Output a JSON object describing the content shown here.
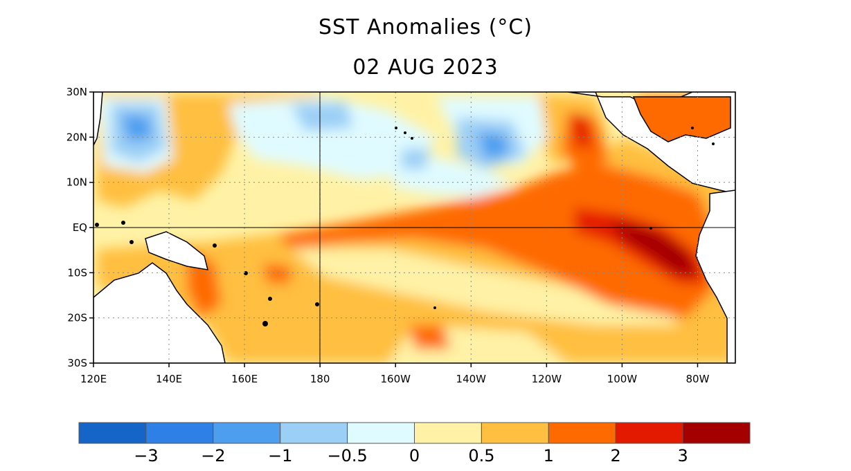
{
  "title": "SST Anomalies (°C)",
  "date": "02 AUG 2023",
  "map": {
    "lon_range": [
      120,
      290
    ],
    "lat_range": [
      -30,
      30
    ],
    "lon_ticks": [
      {
        "value": 120,
        "label": "120E"
      },
      {
        "value": 140,
        "label": "140E"
      },
      {
        "value": 160,
        "label": "160E"
      },
      {
        "value": 180,
        "label": "180"
      },
      {
        "value": 200,
        "label": "160W"
      },
      {
        "value": 220,
        "label": "140W"
      },
      {
        "value": 240,
        "label": "120W"
      },
      {
        "value": 260,
        "label": "100W"
      },
      {
        "value": 280,
        "label": "80W"
      }
    ],
    "lat_ticks": [
      {
        "value": 30,
        "label": "30N"
      },
      {
        "value": 20,
        "label": "20N"
      },
      {
        "value": 10,
        "label": "10N"
      },
      {
        "value": 0,
        "label": "EQ"
      },
      {
        "value": -10,
        "label": "10S"
      },
      {
        "value": -20,
        "label": "20S"
      },
      {
        "value": -30,
        "label": "30S"
      }
    ]
  },
  "colorbar": {
    "bins": [
      {
        "color": "#1565c8"
      },
      {
        "color": "#2e7fe6"
      },
      {
        "color": "#4e9ef0"
      },
      {
        "color": "#9ccff6"
      },
      {
        "color": "#e0fbff"
      },
      {
        "color": "#fff2a6"
      },
      {
        "color": "#ffbf40"
      },
      {
        "color": "#fe6a00"
      },
      {
        "color": "#e41a00"
      },
      {
        "color": "#a50000"
      }
    ],
    "tick_labels": [
      "−3",
      "−2",
      "−1",
      "−0.5",
      "0",
      "0.5",
      "1",
      "2",
      "3"
    ]
  }
}
